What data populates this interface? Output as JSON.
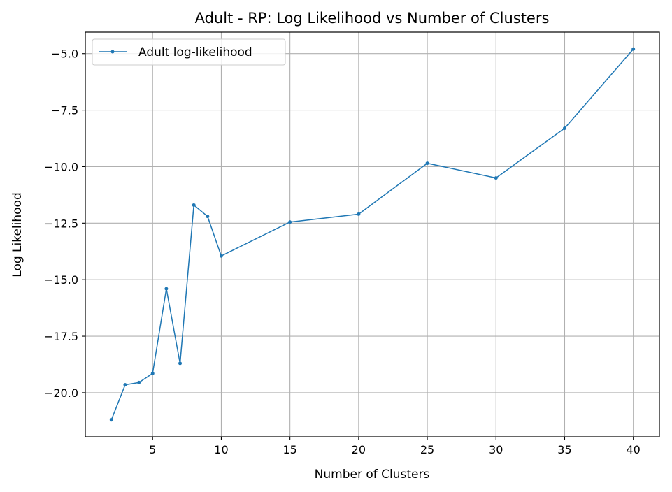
{
  "chart_data": {
    "type": "line",
    "title": "Adult - RP: Log Likelihood vs Number of Clusters",
    "xlabel": "Number of Clusters",
    "ylabel": "Log Likelihood",
    "xlim": [
      0.1,
      41.9
    ],
    "ylim": [
      -21.95,
      -4.05
    ],
    "xticks": [
      5,
      10,
      15,
      20,
      25,
      30,
      35,
      40
    ],
    "yticks": [
      -20.0,
      -17.5,
      -15.0,
      -12.5,
      -10.0,
      -7.5,
      -5.0
    ],
    "xtick_labels": [
      "5",
      "10",
      "15",
      "20",
      "25",
      "30",
      "35",
      "40"
    ],
    "ytick_labels": [
      "−20.0",
      "−17.5",
      "−15.0",
      "−12.5",
      "−10.0",
      "−7.5",
      "−5.0"
    ],
    "grid": true,
    "legend_position": "upper-left",
    "series": [
      {
        "name": "Adult log-likelihood",
        "color": "#1f77b4",
        "x": [
          2,
          3,
          4,
          5,
          6,
          7,
          8,
          9,
          10,
          15,
          20,
          25,
          30,
          35,
          40
        ],
        "y": [
          -21.2,
          -19.65,
          -19.55,
          -19.15,
          -15.4,
          -18.7,
          -11.7,
          -12.2,
          -13.95,
          -12.45,
          -12.1,
          -9.85,
          -10.5,
          -8.3,
          -4.8
        ]
      }
    ]
  }
}
